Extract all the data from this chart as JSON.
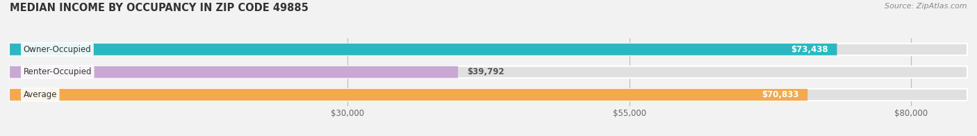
{
  "title": "MEDIAN INCOME BY OCCUPANCY IN ZIP CODE 49885",
  "source": "Source: ZipAtlas.com",
  "categories": [
    "Owner-Occupied",
    "Renter-Occupied",
    "Average"
  ],
  "values": [
    73438,
    39792,
    70833
  ],
  "bar_colors": [
    "#29b8c2",
    "#c9a8d4",
    "#f5a94e"
  ],
  "value_labels": [
    "$73,438",
    "$39,792",
    "$70,833"
  ],
  "xlim": [
    0,
    85000
  ],
  "xticks": [
    30000,
    55000,
    80000
  ],
  "xtick_labels": [
    "$30,000",
    "$55,000",
    "$80,000"
  ],
  "background_color": "#f2f2f2",
  "bar_background_color": "#e0e0e0",
  "title_fontsize": 10.5,
  "bar_height": 0.52,
  "figsize": [
    14.06,
    1.96
  ],
  "dpi": 100
}
